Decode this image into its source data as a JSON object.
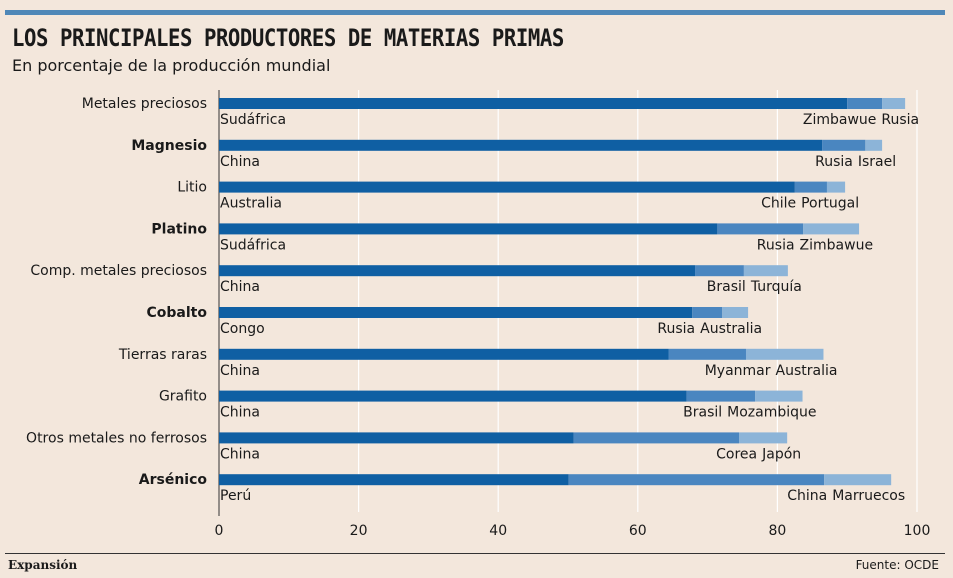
{
  "header": {
    "title": "LOS PRINCIPALES PRODUCTORES DE MATERIAS PRIMAS",
    "subtitle": "En porcentaje de la producción mundial"
  },
  "footer": {
    "brand": "Expansión",
    "source": "Fuente: OCDE"
  },
  "colors": {
    "background": "#f3e7dc",
    "first": "#0f5fa3",
    "second": "#4a86c0",
    "third": "#8cb4d8",
    "grid": "#ffffff",
    "rule": "#4f88b8"
  },
  "chart_data": {
    "type": "bar",
    "orientation": "horizontal",
    "stacked": true,
    "xlim": [
      0,
      100
    ],
    "xticks": [
      0,
      20,
      40,
      60,
      80,
      100
    ],
    "grid": true,
    "categories": [
      "Metales preciosos",
      "Magnesio",
      "Litio",
      "Platino",
      "Comp. metales preciosos",
      "Cobalto",
      "Tierras raras",
      "Grafito",
      "Otros metales no ferrosos",
      "Arsénico"
    ],
    "bold_categories": [
      "Magnesio",
      "Platino",
      "Cobalto",
      "Arsénico"
    ],
    "bars": [
      {
        "category": "Metales preciosos",
        "segments": [
          {
            "country": "Sudáfrica",
            "value": 90
          },
          {
            "country": "Zimbawue",
            "value": 5
          },
          {
            "country": "Rusia",
            "value": 3.3
          }
        ]
      },
      {
        "category": "Magnesio",
        "segments": [
          {
            "country": "China",
            "value": 86.4
          },
          {
            "country": "Rusia",
            "value": 6.2
          },
          {
            "country": "Israel",
            "value": 2.4
          }
        ]
      },
      {
        "category": "Litio",
        "segments": [
          {
            "country": "Australia",
            "value": 82.5
          },
          {
            "country": "Chile",
            "value": 4.6
          },
          {
            "country": "Portugal",
            "value": 2.6
          }
        ]
      },
      {
        "category": "Platino",
        "segments": [
          {
            "country": "Sudáfrica",
            "value": 71.4
          },
          {
            "country": "Rusia",
            "value": 12.3
          },
          {
            "country": "Zimbawue",
            "value": 8
          }
        ]
      },
      {
        "category": "Comp. metales preciosos",
        "segments": [
          {
            "country": "China",
            "value": 68.2
          },
          {
            "country": "Brasil",
            "value": 7
          },
          {
            "country": "Turquía",
            "value": 6.3
          }
        ]
      },
      {
        "category": "Cobalto",
        "segments": [
          {
            "country": "Congo",
            "value": 67.8
          },
          {
            "country": "Rusia",
            "value": 4.3
          },
          {
            "country": "Australia",
            "value": 3.7
          }
        ]
      },
      {
        "category": "Tierras raras",
        "segments": [
          {
            "country": "China",
            "value": 64.4
          },
          {
            "country": "Myanmar",
            "value": 11.1
          },
          {
            "country": "Australia",
            "value": 11.1
          }
        ]
      },
      {
        "category": "Grafito",
        "segments": [
          {
            "country": "China",
            "value": 67
          },
          {
            "country": "Brasil",
            "value": 9.8
          },
          {
            "country": "Mozambique",
            "value": 6.8
          }
        ]
      },
      {
        "category": "Otros metales no ferrosos",
        "segments": [
          {
            "country": "China",
            "value": 50.8
          },
          {
            "country": "Corea",
            "value": 23.7
          },
          {
            "country": "Japón",
            "value": 6.9
          }
        ]
      },
      {
        "category": "Arsénico",
        "segments": [
          {
            "country": "Perú",
            "value": 50.1
          },
          {
            "country": "China",
            "value": 36.6
          },
          {
            "country": "Marruecos",
            "value": 9.6
          }
        ]
      }
    ]
  }
}
